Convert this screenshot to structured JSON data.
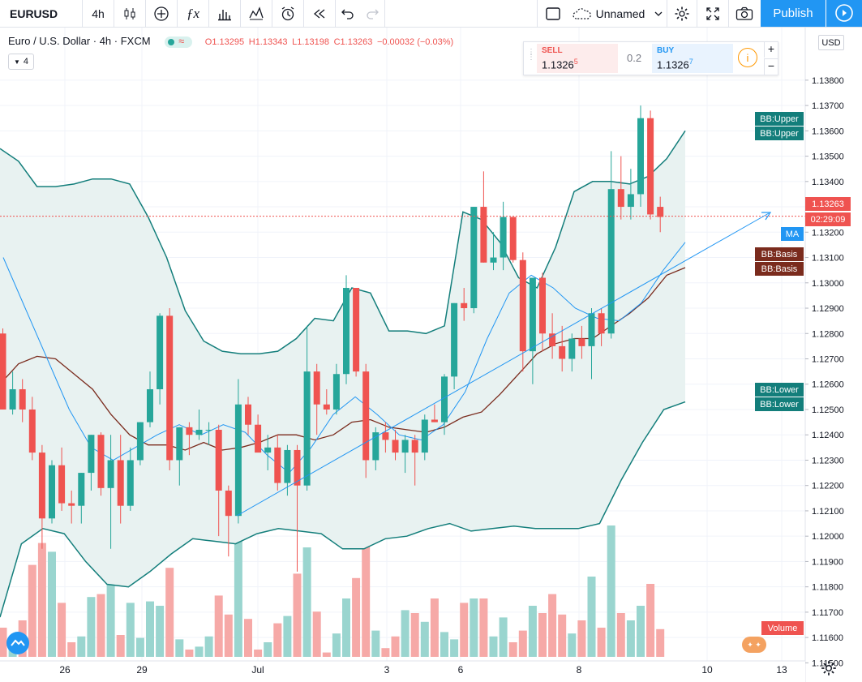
{
  "toolbar": {
    "symbol": "EURUSD",
    "interval": "4h",
    "layout_name": "Unnamed",
    "publish_label": "Publish"
  },
  "legend": {
    "title": "Euro / U.S. Dollar · 4h · FXCM",
    "open": "O1.13295",
    "high": "H1.13343",
    "low": "L1.13198",
    "close": "C1.13263",
    "change": "−0.00032 (−0.03%)",
    "indicator_count": "4"
  },
  "trade": {
    "sell_label": "SELL",
    "sell_price": "1.1326",
    "sell_pip": "5",
    "spread": "0.2",
    "buy_label": "BUY",
    "buy_price": "1.1326",
    "buy_pip": "7"
  },
  "tags": {
    "bb_upper": "BB:Upper",
    "bb_basis": "BB:Basis",
    "bb_lower": "BB:Lower",
    "ma": "MA",
    "last_price": "1.13263",
    "countdown": "02:29:09",
    "volume": "Volume",
    "currency": "USD"
  },
  "colors": {
    "up": "#26a69a",
    "down": "#ef5350",
    "bb_band": "#137e7b",
    "bb_basis": "#7a2b1d",
    "ma": "#2196f3",
    "accent": "#2196f3"
  },
  "chart_data": {
    "type": "candlestick",
    "symbol": "EURUSD",
    "ylim": [
      1.1145,
      1.1395
    ],
    "y_ticks": [
      "1.13800",
      "1.13700",
      "1.13600",
      "1.13500",
      "1.13400",
      "1.13300",
      "1.13200",
      "1.13100",
      "1.13000",
      "1.12900",
      "1.12800",
      "1.12700",
      "1.12600",
      "1.12500",
      "1.12400",
      "1.12300",
      "1.12200",
      "1.12100",
      "1.12000",
      "1.11900",
      "1.11800",
      "1.11700",
      "1.11600",
      "1.11500"
    ],
    "x_ticks": [
      "26",
      "29",
      "Jul",
      "3",
      "6",
      "8",
      "10",
      "13"
    ],
    "candles": [
      {
        "o": 1.128,
        "h": 1.1282,
        "l": 1.125,
        "c": 1.125,
        "v": 0.2
      },
      {
        "o": 1.125,
        "h": 1.1265,
        "l": 1.1248,
        "c": 1.1258,
        "v": 0.1
      },
      {
        "o": 1.1258,
        "h": 1.1262,
        "l": 1.1245,
        "c": 1.125,
        "v": 0.25
      },
      {
        "o": 1.125,
        "h": 1.1255,
        "l": 1.123,
        "c": 1.1233,
        "v": 0.63
      },
      {
        "o": 1.1233,
        "h": 1.1236,
        "l": 1.1195,
        "c": 1.1207,
        "v": 0.78
      },
      {
        "o": 1.1207,
        "h": 1.123,
        "l": 1.1205,
        "c": 1.1228,
        "v": 0.72
      },
      {
        "o": 1.1228,
        "h": 1.1235,
        "l": 1.121,
        "c": 1.1213,
        "v": 0.37
      },
      {
        "o": 1.1213,
        "h": 1.1218,
        "l": 1.1205,
        "c": 1.1212,
        "v": 0.1
      },
      {
        "o": 1.1212,
        "h": 1.1225,
        "l": 1.1205,
        "c": 1.1225,
        "v": 0.14
      },
      {
        "o": 1.1225,
        "h": 1.124,
        "l": 1.1218,
        "c": 1.124,
        "v": 0.41
      },
      {
        "o": 1.124,
        "h": 1.1241,
        "l": 1.1216,
        "c": 1.1219,
        "v": 0.43
      },
      {
        "o": 1.1219,
        "h": 1.124,
        "l": 1.1195,
        "c": 1.123,
        "v": 0.6
      },
      {
        "o": 1.123,
        "h": 1.124,
        "l": 1.1205,
        "c": 1.1212,
        "v": 0.15
      },
      {
        "o": 1.1212,
        "h": 1.1235,
        "l": 1.121,
        "c": 1.123,
        "v": 0.37
      },
      {
        "o": 1.123,
        "h": 1.1245,
        "l": 1.1228,
        "c": 1.1245,
        "v": 0.13
      },
      {
        "o": 1.1245,
        "h": 1.1265,
        "l": 1.1243,
        "c": 1.1258,
        "v": 0.38
      },
      {
        "o": 1.1258,
        "h": 1.1288,
        "l": 1.1252,
        "c": 1.1287,
        "v": 0.35
      },
      {
        "o": 1.1287,
        "h": 1.129,
        "l": 1.1226,
        "c": 1.123,
        "v": 0.61
      },
      {
        "o": 1.123,
        "h": 1.1243,
        "l": 1.122,
        "c": 1.1243,
        "v": 0.12
      },
      {
        "o": 1.1243,
        "h": 1.1245,
        "l": 1.1232,
        "c": 1.124,
        "v": 0.05
      },
      {
        "o": 1.124,
        "h": 1.125,
        "l": 1.1238,
        "c": 1.1242,
        "v": 0.07
      },
      {
        "o": 1.1242,
        "h": 1.1245,
        "l": 1.1236,
        "c": 1.1242,
        "v": 0.14
      },
      {
        "o": 1.1242,
        "h": 1.1244,
        "l": 1.12,
        "c": 1.1218,
        "v": 0.42
      },
      {
        "o": 1.1218,
        "h": 1.122,
        "l": 1.1192,
        "c": 1.1208,
        "v": 0.29
      },
      {
        "o": 1.1208,
        "h": 1.1262,
        "l": 1.1205,
        "c": 1.1252,
        "v": 1.0
      },
      {
        "o": 1.1252,
        "h": 1.1255,
        "l": 1.124,
        "c": 1.1244,
        "v": 0.26
      },
      {
        "o": 1.1244,
        "h": 1.1248,
        "l": 1.1235,
        "c": 1.1233,
        "v": 0.05
      },
      {
        "o": 1.1233,
        "h": 1.124,
        "l": 1.1226,
        "c": 1.1235,
        "v": 0.1
      },
      {
        "o": 1.1235,
        "h": 1.124,
        "l": 1.1218,
        "c": 1.1221,
        "v": 0.23
      },
      {
        "o": 1.1221,
        "h": 1.1236,
        "l": 1.1216,
        "c": 1.1234,
        "v": 0.28
      },
      {
        "o": 1.1234,
        "h": 1.1236,
        "l": 1.1186,
        "c": 1.122,
        "v": 0.57
      },
      {
        "o": 1.122,
        "h": 1.1283,
        "l": 1.1218,
        "c": 1.1265,
        "v": 0.75
      },
      {
        "o": 1.1265,
        "h": 1.1268,
        "l": 1.124,
        "c": 1.1252,
        "v": 0.31
      },
      {
        "o": 1.1252,
        "h": 1.1258,
        "l": 1.1248,
        "c": 1.125,
        "v": 0.03
      },
      {
        "o": 1.125,
        "h": 1.1268,
        "l": 1.1248,
        "c": 1.1264,
        "v": 0.16
      },
      {
        "o": 1.1264,
        "h": 1.1303,
        "l": 1.126,
        "c": 1.1298,
        "v": 0.4
      },
      {
        "o": 1.1298,
        "h": 1.1298,
        "l": 1.1263,
        "c": 1.1265,
        "v": 0.54
      },
      {
        "o": 1.1265,
        "h": 1.1268,
        "l": 1.1223,
        "c": 1.123,
        "v": 0.82
      },
      {
        "o": 1.123,
        "h": 1.1243,
        "l": 1.1226,
        "c": 1.1241,
        "v": 0.18
      },
      {
        "o": 1.1241,
        "h": 1.1245,
        "l": 1.1233,
        "c": 1.1238,
        "v": 0.06
      },
      {
        "o": 1.1238,
        "h": 1.1242,
        "l": 1.123,
        "c": 1.1233,
        "v": 0.14
      },
      {
        "o": 1.1233,
        "h": 1.124,
        "l": 1.1225,
        "c": 1.1238,
        "v": 0.32
      },
      {
        "o": 1.1238,
        "h": 1.124,
        "l": 1.122,
        "c": 1.1233,
        "v": 0.3
      },
      {
        "o": 1.1233,
        "h": 1.1248,
        "l": 1.123,
        "c": 1.1246,
        "v": 0.24
      },
      {
        "o": 1.1246,
        "h": 1.1252,
        "l": 1.1245,
        "c": 1.1245,
        "v": 0.4
      },
      {
        "o": 1.1245,
        "h": 1.1264,
        "l": 1.124,
        "c": 1.1263,
        "v": 0.17
      },
      {
        "o": 1.1263,
        "h": 1.1292,
        "l": 1.1258,
        "c": 1.1292,
        "v": 0.12
      },
      {
        "o": 1.1292,
        "h": 1.1298,
        "l": 1.1285,
        "c": 1.129,
        "v": 0.37
      },
      {
        "o": 1.129,
        "h": 1.133,
        "l": 1.1288,
        "c": 1.133,
        "v": 0.4
      },
      {
        "o": 1.133,
        "h": 1.1344,
        "l": 1.1308,
        "c": 1.1308,
        "v": 0.4
      },
      {
        "o": 1.1308,
        "h": 1.132,
        "l": 1.1305,
        "c": 1.131,
        "v": 0.14
      },
      {
        "o": 1.131,
        "h": 1.1332,
        "l": 1.1305,
        "c": 1.1326,
        "v": 0.27
      },
      {
        "o": 1.1326,
        "h": 1.1326,
        "l": 1.1308,
        "c": 1.1309,
        "v": 0.1
      },
      {
        "o": 1.1309,
        "h": 1.1312,
        "l": 1.1265,
        "c": 1.1273,
        "v": 0.18
      },
      {
        "o": 1.1273,
        "h": 1.1302,
        "l": 1.126,
        "c": 1.1302,
        "v": 0.35
      },
      {
        "o": 1.1302,
        "h": 1.1304,
        "l": 1.1273,
        "c": 1.128,
        "v": 0.3
      },
      {
        "o": 1.128,
        "h": 1.1288,
        "l": 1.127,
        "c": 1.1275,
        "v": 0.43
      },
      {
        "o": 1.1275,
        "h": 1.1283,
        "l": 1.1265,
        "c": 1.127,
        "v": 0.29
      },
      {
        "o": 1.127,
        "h": 1.128,
        "l": 1.1265,
        "c": 1.1278,
        "v": 0.16
      },
      {
        "o": 1.1278,
        "h": 1.1283,
        "l": 1.127,
        "c": 1.1275,
        "v": 0.25
      },
      {
        "o": 1.1275,
        "h": 1.129,
        "l": 1.1262,
        "c": 1.1288,
        "v": 0.55
      },
      {
        "o": 1.1288,
        "h": 1.129,
        "l": 1.1275,
        "c": 1.128,
        "v": 0.2
      },
      {
        "o": 1.128,
        "h": 1.1352,
        "l": 1.1278,
        "c": 1.1337,
        "v": 0.9
      },
      {
        "o": 1.1337,
        "h": 1.135,
        "l": 1.1325,
        "c": 1.133,
        "v": 0.3
      },
      {
        "o": 1.133,
        "h": 1.1345,
        "l": 1.1325,
        "c": 1.1335,
        "v": 0.25
      },
      {
        "o": 1.1335,
        "h": 1.137,
        "l": 1.133,
        "c": 1.1365,
        "v": 0.35
      },
      {
        "o": 1.1365,
        "h": 1.1368,
        "l": 1.1325,
        "c": 1.1327,
        "v": 0.5
      },
      {
        "o": 1.133,
        "h": 1.1334,
        "l": 1.132,
        "c": 1.1326,
        "v": 0.19
      }
    ],
    "bb_upper": [
      1.1353,
      1.1348,
      1.1338,
      1.1338,
      1.1339,
      1.1341,
      1.1341,
      1.1339,
      1.1326,
      1.131,
      1.1289,
      1.1277,
      1.1273,
      1.1272,
      1.1272,
      1.1273,
      1.1278,
      1.1286,
      1.1285,
      1.1298,
      1.1296,
      1.1281,
      1.1281,
      1.128,
      1.1283,
      1.1328,
      1.1325,
      1.1316,
      1.1302,
      1.1298,
      1.1314,
      1.1336,
      1.134,
      1.134,
      1.1339,
      1.1342,
      1.1349,
      1.136
    ],
    "bb_basis": [
      1.126,
      1.1268,
      1.1271,
      1.127,
      1.1264,
      1.1258,
      1.1248,
      1.124,
      1.1236,
      1.1236,
      1.1234,
      1.1237,
      1.1234,
      1.1235,
      1.1237,
      1.124,
      1.124,
      1.1238,
      1.124,
      1.1245,
      1.1246,
      1.1243,
      1.1242,
      1.1241,
      1.1243,
      1.1247,
      1.1249,
      1.1256,
      1.1264,
      1.1272,
      1.1276,
      1.1278,
      1.1278,
      1.1283,
      1.1288,
      1.1294,
      1.1303,
      1.1306
    ],
    "bb_lower": [
      1.1168,
      1.1197,
      1.1203,
      1.1201,
      1.119,
      1.1181,
      1.118,
      1.1186,
      1.1193,
      1.1199,
      1.1198,
      1.1197,
      1.1201,
      1.1203,
      1.1202,
      1.1201,
      1.1195,
      1.1195,
      1.1199,
      1.12,
      1.1203,
      1.1205,
      1.1202,
      1.1203,
      1.1204,
      1.1203,
      1.1203,
      1.1203,
      1.1205,
      1.1222,
      1.1237,
      1.125,
      1.1253
    ],
    "ma": [
      1.131,
      1.129,
      1.127,
      1.125,
      1.1235,
      1.123,
      1.1235,
      1.124,
      1.1244,
      1.124,
      1.1244,
      1.1241,
      1.1232,
      1.1225,
      1.1235,
      1.1248,
      1.1255,
      1.1248,
      1.124,
      1.1238,
      1.1244,
      1.1257,
      1.1278,
      1.1296,
      1.1303,
      1.1298,
      1.129,
      1.1286,
      1.1285,
      1.1292,
      1.1305,
      1.1316
    ]
  }
}
